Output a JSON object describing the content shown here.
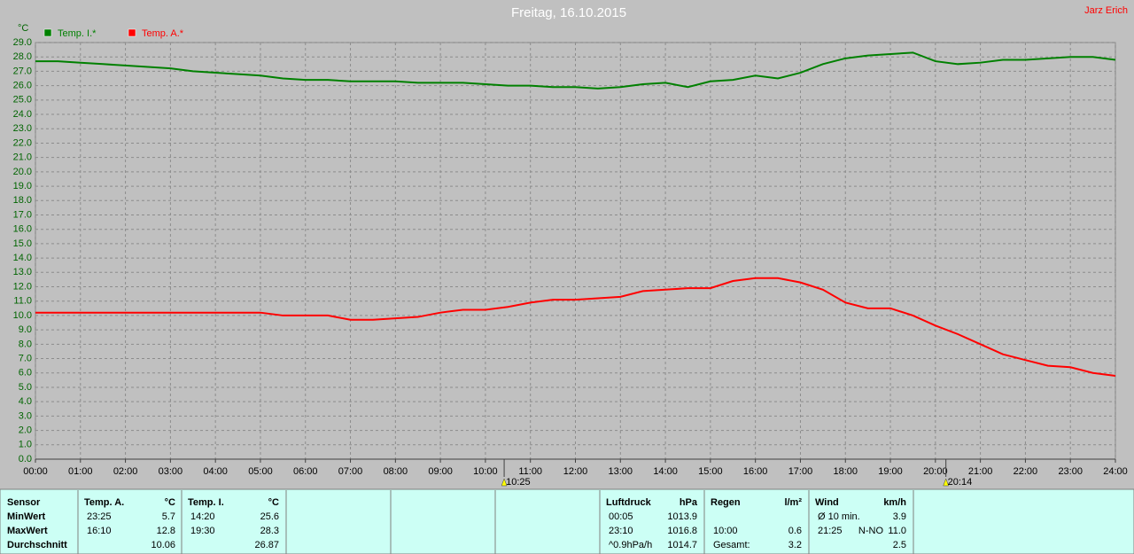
{
  "chart_data": {
    "type": "line",
    "title": "Freitag, 16.10.2015",
    "corner_label": "Jarz Erich",
    "y_label": "°C",
    "x": [
      0,
      0.5,
      1,
      1.5,
      2,
      2.5,
      3,
      3.5,
      4,
      4.5,
      5,
      5.5,
      6,
      6.5,
      7,
      7.5,
      8,
      8.5,
      9,
      9.5,
      10,
      10.5,
      11,
      11.5,
      12,
      12.5,
      13,
      13.5,
      14,
      14.5,
      15,
      15.5,
      16,
      16.5,
      17,
      17.5,
      18,
      18.5,
      19,
      19.5,
      20,
      20.5,
      21,
      21.5,
      22,
      22.5,
      23,
      23.5,
      24
    ],
    "series": [
      {
        "name": "Temp. I.*",
        "color": "#008000",
        "values": [
          27.7,
          27.7,
          27.6,
          27.5,
          27.4,
          27.3,
          27.2,
          27.0,
          26.9,
          26.8,
          26.7,
          26.5,
          26.4,
          26.4,
          26.3,
          26.3,
          26.3,
          26.2,
          26.2,
          26.2,
          26.1,
          26.0,
          26.0,
          25.9,
          25.9,
          25.8,
          25.9,
          26.1,
          26.2,
          25.9,
          26.3,
          26.4,
          26.7,
          26.5,
          26.9,
          27.5,
          27.9,
          28.1,
          28.2,
          28.3,
          27.7,
          27.5,
          27.6,
          27.8,
          27.8,
          27.9,
          28.0,
          28.0,
          27.8
        ]
      },
      {
        "name": "Temp. A.*",
        "color": "#ff0000",
        "values": [
          10.2,
          10.2,
          10.2,
          10.2,
          10.2,
          10.2,
          10.2,
          10.2,
          10.2,
          10.2,
          10.2,
          10.0,
          10.0,
          10.0,
          9.7,
          9.7,
          9.8,
          9.9,
          10.2,
          10.4,
          10.4,
          10.6,
          10.9,
          11.1,
          11.1,
          11.2,
          11.3,
          11.7,
          11.8,
          11.9,
          11.9,
          12.4,
          12.6,
          12.6,
          12.3,
          11.8,
          10.9,
          10.5,
          10.5,
          10.0,
          9.3,
          8.7,
          8.0,
          7.3,
          6.9,
          6.5,
          6.4,
          6.0,
          5.8
        ]
      }
    ],
    "xlim": [
      0,
      24
    ],
    "xticks": [
      {
        "value": 0,
        "label": "00:00"
      },
      {
        "value": 1,
        "label": "01:00"
      },
      {
        "value": 2,
        "label": "02:00"
      },
      {
        "value": 3,
        "label": "03:00"
      },
      {
        "value": 4,
        "label": "04:00"
      },
      {
        "value": 5,
        "label": "05:00"
      },
      {
        "value": 6,
        "label": "06:00"
      },
      {
        "value": 7,
        "label": "07:00"
      },
      {
        "value": 8,
        "label": "08:00"
      },
      {
        "value": 9,
        "label": "09:00"
      },
      {
        "value": 10,
        "label": "10:00"
      },
      {
        "value": 11,
        "label": "11:00"
      },
      {
        "value": 12,
        "label": "12:00"
      },
      {
        "value": 13,
        "label": "13:00"
      },
      {
        "value": 14,
        "label": "14:00"
      },
      {
        "value": 15,
        "label": "15:00"
      },
      {
        "value": 16,
        "label": "16:00"
      },
      {
        "value": 17,
        "label": "17:00"
      },
      {
        "value": 18,
        "label": "18:00"
      },
      {
        "value": 19,
        "label": "19:00"
      },
      {
        "value": 20,
        "label": "20:00"
      },
      {
        "value": 21,
        "label": "21:00"
      },
      {
        "value": 22,
        "label": "22:00"
      },
      {
        "value": 23,
        "label": "23:00"
      },
      {
        "value": 24,
        "label": "24:00"
      }
    ],
    "ylim": [
      0,
      29
    ],
    "yticks": [
      {
        "value": 0,
        "label": "0.0"
      },
      {
        "value": 1,
        "label": "1.0"
      },
      {
        "value": 2,
        "label": "2.0"
      },
      {
        "value": 3,
        "label": "3.0"
      },
      {
        "value": 4,
        "label": "4.0"
      },
      {
        "value": 5,
        "label": "5.0"
      },
      {
        "value": 6,
        "label": "6.0"
      },
      {
        "value": 7,
        "label": "7.0"
      },
      {
        "value": 8,
        "label": "8.0"
      },
      {
        "value": 9,
        "label": "9.0"
      },
      {
        "value": 10,
        "label": "10.0"
      },
      {
        "value": 11,
        "label": "11.0"
      },
      {
        "value": 12,
        "label": "12.0"
      },
      {
        "value": 13,
        "label": "13.0"
      },
      {
        "value": 14,
        "label": "14.0"
      },
      {
        "value": 15,
        "label": "15.0"
      },
      {
        "value": 16,
        "label": "16.0"
      },
      {
        "value": 17,
        "label": "17.0"
      },
      {
        "value": 18,
        "label": "18.0"
      },
      {
        "value": 19,
        "label": "19.0"
      },
      {
        "value": 20,
        "label": "20.0"
      },
      {
        "value": 21,
        "label": "21.0"
      },
      {
        "value": 22,
        "label": "22.0"
      },
      {
        "value": 23,
        "label": "23.0"
      },
      {
        "value": 24,
        "label": "24.0"
      },
      {
        "value": 25,
        "label": "25.0"
      },
      {
        "value": 26,
        "label": "26.0"
      },
      {
        "value": 27,
        "label": "27.0"
      },
      {
        "value": 28,
        "label": "28.0"
      },
      {
        "value": 29,
        "label": "29.0"
      }
    ],
    "grid": true,
    "annotations": [
      {
        "x": 10.4167,
        "label": "10:25"
      },
      {
        "x": 20.2333,
        "label": "20:14"
      }
    ]
  },
  "stats": {
    "row_labels": [
      "Sensor",
      "MinWert",
      "MaxWert",
      "Durchschnitt"
    ],
    "groups": [
      {
        "title": "Temp. A.",
        "unit": "°C",
        "rows": [
          {
            "time": "23:25",
            "value": "5.7"
          },
          {
            "time": "16:10",
            "value": "12.8"
          },
          {
            "value": "10.06"
          }
        ]
      },
      {
        "title": "Temp. I.",
        "unit": "°C",
        "rows": [
          {
            "time": "14:20",
            "value": "25.6"
          },
          {
            "time": "19:30",
            "value": "28.3"
          },
          {
            "value": "26.87"
          }
        ]
      },
      {
        "title": "Luftdruck",
        "unit": "hPa",
        "rows": [
          {
            "time": "00:05",
            "value": "1013.9"
          },
          {
            "time": "23:10",
            "value": "1016.8"
          },
          {
            "time": "^0.9hPa/h",
            "value": "1014.7"
          }
        ]
      },
      {
        "title": "Regen",
        "unit": "l/m²",
        "rows": [
          null,
          {
            "time": "10:00",
            "value": "0.6"
          },
          {
            "time": "Gesamt:",
            "value": "3.2"
          }
        ]
      },
      {
        "title": "Wind",
        "unit": "km/h",
        "rows": [
          {
            "time": "Ø 10 min.",
            "value": "3.9"
          },
          {
            "time": "21:25",
            "dir": "N-NO",
            "value": "11.0"
          },
          {
            "value": "2.5"
          }
        ]
      }
    ]
  }
}
